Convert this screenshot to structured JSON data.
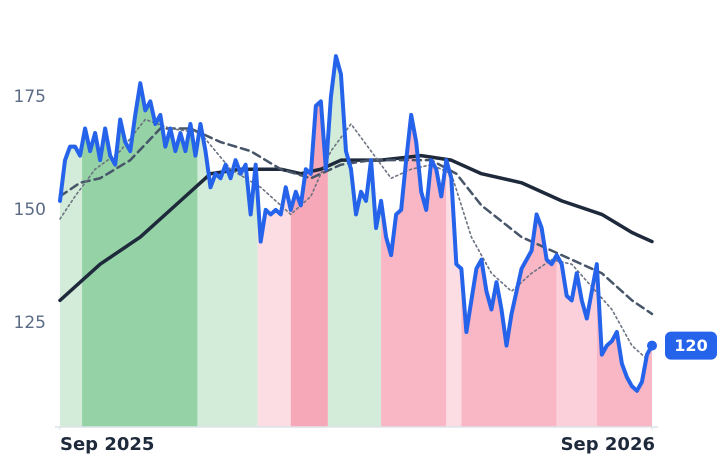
{
  "chart_data": {
    "type": "line",
    "xlim": [
      0,
      118
    ],
    "ylim": [
      102,
      190
    ],
    "xticks": [
      {
        "value": 0,
        "label": "Sep 2025"
      },
      {
        "value": 118,
        "label": "Sep 2026"
      }
    ],
    "yticks": [
      125,
      150,
      175
    ],
    "grid": false,
    "regions": [
      {
        "start": 0,
        "end": 4.4,
        "color": "#d3ecd9"
      },
      {
        "start": 4.4,
        "end": 27.4,
        "color": "#95d2a6"
      },
      {
        "start": 27.4,
        "end": 39.4,
        "color": "#d3ecd9"
      },
      {
        "start": 39.4,
        "end": 46,
        "color": "#fbdde3"
      },
      {
        "start": 46,
        "end": 53.4,
        "color": "#f7a8b8"
      },
      {
        "start": 53.4,
        "end": 64,
        "color": "#d3ecd9"
      },
      {
        "start": 64,
        "end": 77,
        "color": "#f9b6c4"
      },
      {
        "start": 77,
        "end": 80,
        "color": "#fbdde3"
      },
      {
        "start": 80,
        "end": 99,
        "color": "#f9b6c4"
      },
      {
        "start": 99,
        "end": 107,
        "color": "#fbd0da"
      },
      {
        "start": 107,
        "end": 118,
        "color": "#f9b6c4"
      }
    ],
    "series": [
      {
        "color": "#2563eb",
        "values": [
          152,
          161,
          164,
          164,
          162,
          168,
          163,
          167,
          161,
          168,
          162,
          160,
          170,
          165,
          163,
          171,
          178,
          172,
          174,
          169,
          171,
          164,
          168,
          163,
          167,
          163,
          169,
          162,
          169,
          163,
          155,
          158,
          157,
          160,
          157,
          161,
          158,
          160,
          149,
          160,
          143,
          150,
          149,
          150,
          149,
          155,
          150,
          154,
          151,
          159,
          158,
          173,
          174,
          159,
          175,
          184,
          180,
          163,
          159,
          149,
          154,
          152,
          161,
          146,
          152,
          144,
          140,
          149,
          150,
          161,
          171,
          165,
          154,
          150,
          161,
          159,
          153,
          161,
          157,
          138,
          137,
          123,
          130,
          137,
          139,
          132,
          128,
          134,
          128,
          120,
          127,
          132,
          137,
          139,
          141,
          149,
          146,
          139,
          138,
          140,
          138,
          131,
          130,
          136,
          130,
          126,
          132,
          138,
          118,
          120,
          121,
          123,
          116,
          113,
          111,
          110,
          112,
          118,
          120
        ]
      },
      {
        "color": "#1e293b",
        "x": [
          0,
          8,
          16,
          24,
          30,
          36,
          44,
          48,
          52,
          56,
          64,
          72,
          78,
          84,
          92,
          100,
          108,
          114,
          118
        ],
        "values": [
          130,
          138,
          144,
          152,
          158,
          159,
          159,
          158,
          159,
          161,
          161,
          162,
          161,
          158,
          156,
          152,
          149,
          145,
          143
        ]
      },
      {
        "color": "#475569",
        "x": [
          0,
          4,
          8,
          14,
          20,
          26,
          32,
          38,
          44,
          50,
          56,
          62,
          68,
          74,
          79,
          84,
          92,
          100,
          108,
          114,
          118
        ],
        "values": [
          153,
          156,
          157,
          161,
          168,
          168,
          165,
          163,
          159,
          157,
          160,
          161,
          161,
          161,
          158,
          151,
          144,
          140,
          136,
          130,
          127
        ]
      },
      {
        "color": "#6b7280",
        "x": [
          0,
          3,
          7,
          12,
          17,
          22,
          28,
          34,
          40,
          46,
          50,
          54,
          58,
          62,
          66,
          70,
          74,
          78,
          82,
          86,
          90,
          94,
          98,
          102,
          106,
          110,
          114,
          117
        ],
        "values": [
          148,
          153,
          159,
          163,
          170,
          168,
          167,
          159,
          155,
          149,
          153,
          163,
          169,
          163,
          157,
          159,
          160,
          158,
          144,
          136,
          132,
          136,
          139,
          138,
          133,
          128,
          120,
          117
        ]
      }
    ]
  }
}
